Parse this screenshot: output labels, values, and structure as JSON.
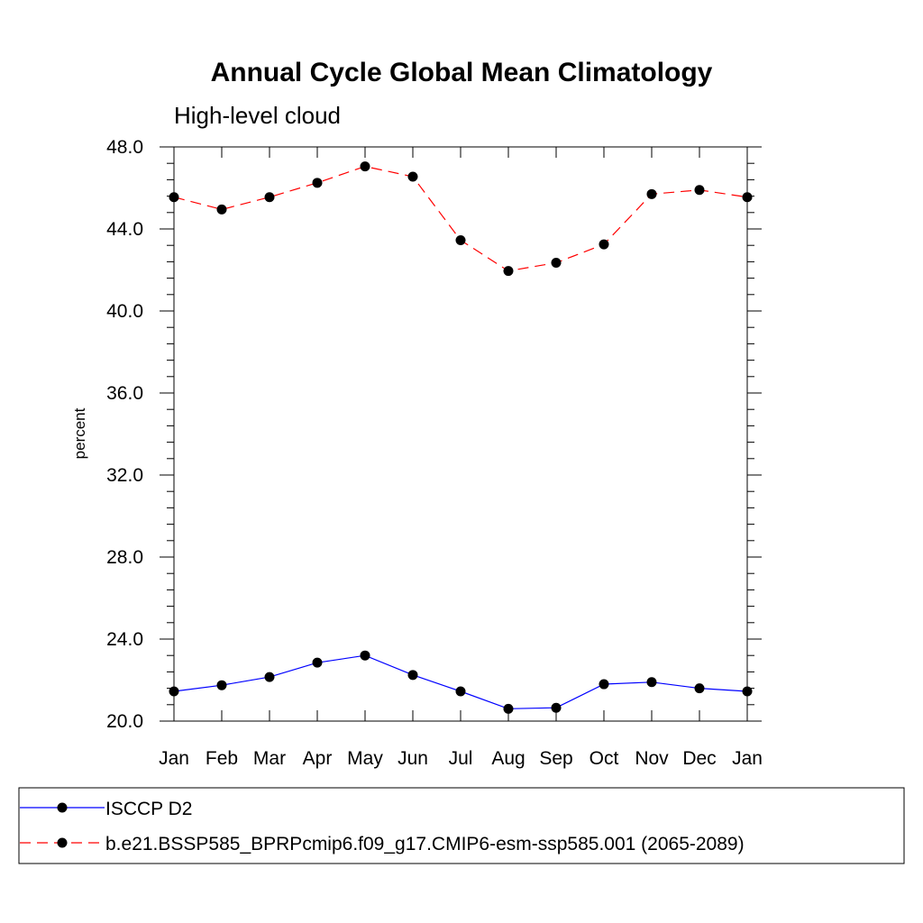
{
  "chart_data": {
    "type": "line",
    "title": "Annual Cycle Global Mean Climatology",
    "subtitle": "High-level cloud",
    "xlabel": "",
    "ylabel": "percent",
    "categories": [
      "Jan",
      "Feb",
      "Mar",
      "Apr",
      "May",
      "Jun",
      "Jul",
      "Aug",
      "Sep",
      "Oct",
      "Nov",
      "Dec",
      "Jan"
    ],
    "ylim": [
      20.0,
      48.0
    ],
    "yticks": [
      "20.0",
      "24.0",
      "28.0",
      "32.0",
      "36.0",
      "40.0",
      "44.0",
      "48.0"
    ],
    "grid": false,
    "legend_position": "bottom",
    "series": [
      {
        "name": "ISCCP D2",
        "color": "#0000ff",
        "dash": "solid",
        "marker": "filled-circle",
        "values": [
          21.45,
          21.75,
          22.15,
          22.85,
          23.2,
          22.25,
          21.45,
          20.6,
          20.65,
          21.8,
          21.9,
          21.6,
          21.45
        ]
      },
      {
        "name": "b.e21.BSSP585_BPRPcmip6.f09_g17.CMIP6-esm-ssp585.001 (2065-2089)",
        "color": "#ff0000",
        "dash": "dashed",
        "marker": "filled-circle",
        "values": [
          45.55,
          44.95,
          45.55,
          46.25,
          47.05,
          46.55,
          43.45,
          41.95,
          42.35,
          43.25,
          45.7,
          45.9,
          45.55
        ]
      }
    ]
  }
}
